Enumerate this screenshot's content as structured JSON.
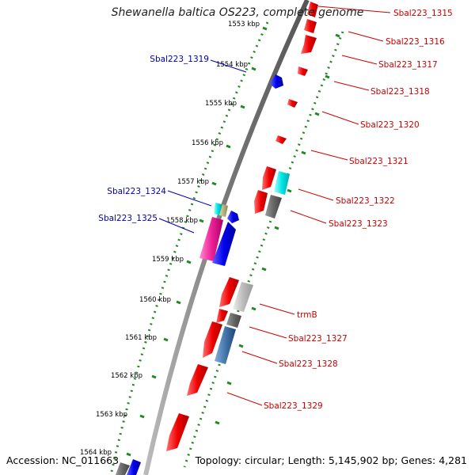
{
  "title": "Shewanella baltica OS223, complete genome",
  "footer": {
    "accession": "Accession: NC_011663",
    "topology": "Topology: circular; Length: 5,145,902 bp; Genes: 4,281"
  },
  "ticks": [
    "1553 kbp",
    "1554 kbp",
    "1555 kbp",
    "1556 kbp",
    "1557 kbp",
    "1558 kbp",
    "1559 kbp",
    "1560 kbp",
    "1561 kbp",
    "1562 kbp",
    "1563 kbp",
    "1564 kbp"
  ],
  "labels_right": [
    "Sbal223_1315",
    "Sbal223_1316",
    "Sbal223_1317",
    "Sbal223_1318",
    "Sbal223_1320",
    "Sbal223_1321",
    "Sbal223_1322",
    "Sbal223_1323",
    "trmB",
    "Sbal223_1327",
    "Sbal223_1328",
    "Sbal223_1329"
  ],
  "labels_left": [
    "Sbal223_1319",
    "Sbal223_1324",
    "Sbal223_1325"
  ],
  "colors": {
    "forward_gene": "#ee0000",
    "reverse_gene": "#0000ee",
    "backbone": "#888888",
    "tick": "#228822",
    "label_right": "#cc0000",
    "label_left": "#0000aa",
    "cyan": "#00e5e5",
    "magenta": "#ee2299",
    "dark_gray": "#666666",
    "light_gray": "#bbbbbb",
    "steel_blue": "#4477aa",
    "olive": "#aaaa77"
  }
}
